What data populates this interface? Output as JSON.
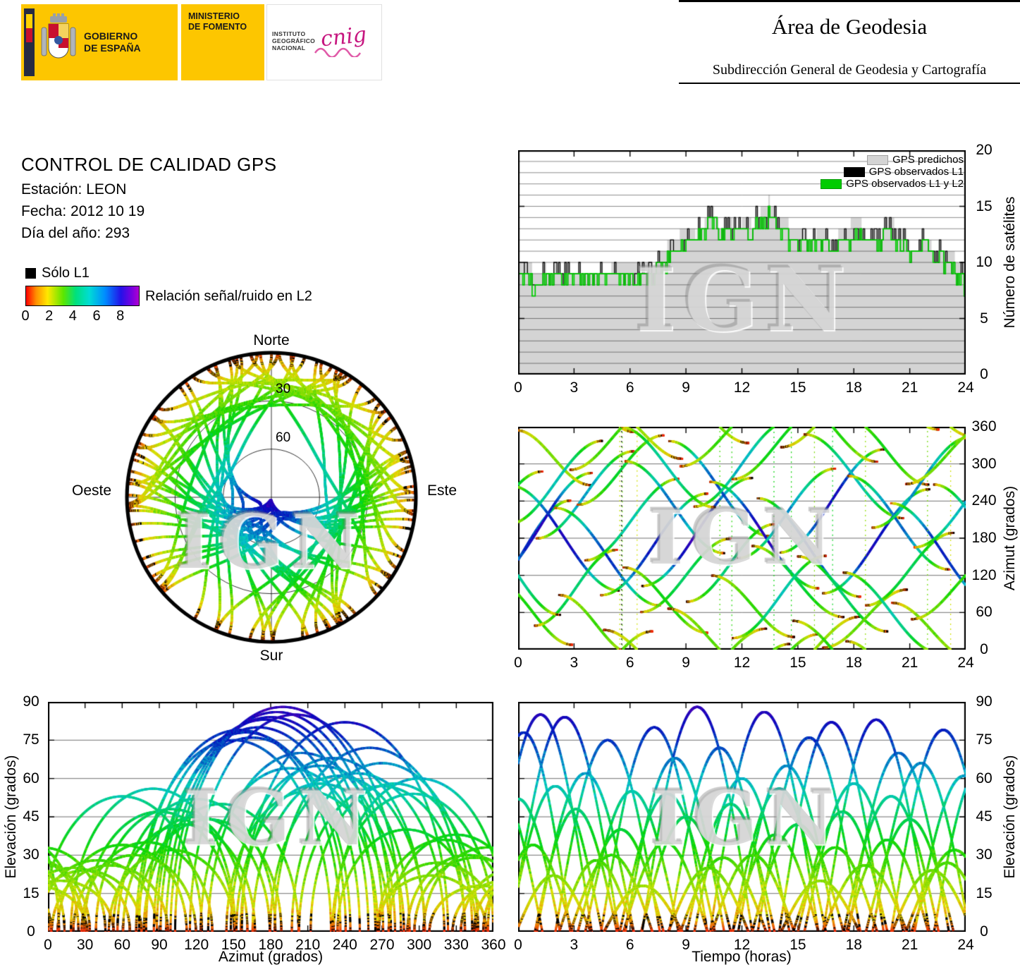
{
  "header": {
    "gobierno1": "GOBIERNO",
    "gobierno2": "DE ESPAÑA",
    "ministerio1": "MINISTERIO",
    "ministerio2": "DE FOMENTO",
    "instituto1": "INSTITUTO",
    "instituto2": "GEOGRÁFICO",
    "instituto3": "NACIONAL",
    "cnig": "cnig",
    "area_title": "Área de Geodesia",
    "area_subtitle": "Subdirección General de Geodesia y Cartografía"
  },
  "info": {
    "title": "CONTROL DE CALIDAD GPS",
    "station": "Estación: LEON",
    "date": "Fecha: 2012 10 19",
    "doy": "Día del año: 293"
  },
  "legend": {
    "solo_l1": "Sólo L1",
    "colorbar_label": "Relación señal/ruido en L2",
    "colorbar_ticks": [
      0,
      2,
      4,
      6,
      8
    ],
    "colorbar_max": 9.5
  },
  "watermark": "IGN",
  "chart_data": [
    {
      "id": "sat-count",
      "type": "area",
      "ylabel": "Número de satélites",
      "xlim": [
        0,
        24
      ],
      "ylim": [
        0,
        20
      ],
      "xticks": [
        0,
        3,
        6,
        9,
        12,
        15,
        18,
        21,
        24
      ],
      "yticks": [
        0,
        5,
        10,
        15,
        20
      ],
      "grid_y_step": 1,
      "legend": [
        {
          "label": "GPS predichos",
          "color": "#d4d4d4"
        },
        {
          "label": "GPS observados L1",
          "color": "#000000"
        },
        {
          "label": "GPS observados L1 y L2",
          "color": "#00cc00"
        }
      ],
      "keypoints": [
        [
          0,
          9.5
        ],
        [
          1,
          8.2
        ],
        [
          2,
          9.0
        ],
        [
          3,
          9.2
        ],
        [
          4,
          8.8
        ],
        [
          5,
          9.0
        ],
        [
          6,
          9.3
        ],
        [
          7,
          9.0
        ],
        [
          8,
          10.5
        ],
        [
          9,
          12.0
        ],
        [
          10,
          12.8
        ],
        [
          10.5,
          14.5
        ],
        [
          11,
          12.6
        ],
        [
          12,
          12.8
        ],
        [
          13,
          13.8
        ],
        [
          13.5,
          14.6
        ],
        [
          14,
          12.8
        ],
        [
          15,
          12.2
        ],
        [
          16,
          12.0
        ],
        [
          17,
          11.2
        ],
        [
          18,
          12.8
        ],
        [
          19,
          12.0
        ],
        [
          20,
          12.8
        ],
        [
          21,
          11.2
        ],
        [
          22,
          11.8
        ],
        [
          23,
          10.2
        ],
        [
          24,
          8.4
        ]
      ],
      "noise_seed": 293
    },
    {
      "id": "sky-plot",
      "type": "scatter",
      "labels": {
        "north": "Norte",
        "south": "Sur",
        "east": "Este",
        "west": "Oeste"
      },
      "ring_elevations": [
        30,
        60
      ],
      "ring_labels": [
        "30",
        "60"
      ],
      "source": "satellite-passes"
    },
    {
      "id": "azimuth-time",
      "type": "scatter",
      "ylabel": "Azimut (grados)",
      "xlim": [
        0,
        24
      ],
      "ylim": [
        0,
        360
      ],
      "xticks": [
        0,
        3,
        6,
        9,
        12,
        15,
        18,
        21,
        24
      ],
      "yticks": [
        0,
        60,
        120,
        180,
        240,
        300,
        360
      ],
      "source": "satellite-passes"
    },
    {
      "id": "elevation-azimuth",
      "type": "scatter",
      "xlabel": "Azimut (grados)",
      "ylabel": "Elevación (grados)",
      "xlim": [
        0,
        360
      ],
      "ylim": [
        0,
        90
      ],
      "xticks": [
        0,
        30,
        60,
        90,
        120,
        150,
        180,
        210,
        240,
        270,
        300,
        330,
        360
      ],
      "yticks": [
        0,
        15,
        30,
        45,
        60,
        75,
        90
      ],
      "source": "satellite-passes"
    },
    {
      "id": "elevation-time",
      "type": "scatter",
      "xlabel": "Tiempo (horas)",
      "ylabel": "Elevación (grados)",
      "xlim": [
        0,
        24
      ],
      "ylim": [
        0,
        90
      ],
      "xticks": [
        0,
        3,
        6,
        9,
        12,
        15,
        18,
        21,
        24
      ],
      "yticks": [
        0,
        15,
        30,
        45,
        60,
        75,
        90
      ],
      "source": "satellite-passes"
    },
    {
      "id": "satellite-passes",
      "type": "scatter",
      "format": [
        "t_peak_h",
        "duration_h",
        "elev_max_deg",
        "azimuth_peak_deg",
        "sweep_dir"
      ],
      "passes": [
        [
          0.3,
          5.0,
          78,
          160,
          1
        ],
        [
          0.8,
          4.2,
          34,
          60,
          -1
        ],
        [
          1.2,
          5.5,
          85,
          200,
          1
        ],
        [
          1.9,
          4.0,
          22,
          310,
          -1
        ],
        [
          2.5,
          5.8,
          84,
          180,
          -1
        ],
        [
          3.1,
          4.4,
          48,
          100,
          1
        ],
        [
          3.6,
          5.2,
          62,
          250,
          1
        ],
        [
          4.2,
          4.0,
          28,
          40,
          -1
        ],
        [
          4.8,
          5.6,
          75,
          150,
          -1
        ],
        [
          5.5,
          4.6,
          40,
          290,
          1
        ],
        [
          6.1,
          5.0,
          55,
          210,
          1
        ],
        [
          6.7,
          4.2,
          18,
          350,
          -1
        ],
        [
          7.3,
          5.7,
          80,
          170,
          1
        ],
        [
          7.9,
          4.5,
          35,
          80,
          -1
        ],
        [
          8.4,
          5.3,
          68,
          230,
          -1
        ],
        [
          9.0,
          4.8,
          45,
          120,
          1
        ],
        [
          9.6,
          5.9,
          88,
          190,
          1
        ],
        [
          10.2,
          4.3,
          25,
          20,
          -1
        ],
        [
          10.8,
          5.4,
          72,
          260,
          -1
        ],
        [
          11.4,
          4.7,
          50,
          140,
          1
        ],
        [
          12.0,
          5.1,
          60,
          300,
          1
        ],
        [
          12.6,
          4.4,
          30,
          70,
          -1
        ],
        [
          13.2,
          5.8,
          86,
          185,
          -1
        ],
        [
          13.8,
          4.6,
          38,
          330,
          1
        ],
        [
          14.4,
          5.2,
          65,
          220,
          1
        ],
        [
          15.0,
          4.9,
          42,
          110,
          -1
        ],
        [
          15.6,
          5.5,
          76,
          165,
          -1
        ],
        [
          16.2,
          4.2,
          20,
          10,
          1
        ],
        [
          16.8,
          5.6,
          82,
          240,
          1
        ],
        [
          17.4,
          4.8,
          47,
          90,
          -1
        ],
        [
          18.0,
          5.3,
          58,
          280,
          -1
        ],
        [
          18.6,
          4.5,
          26,
          50,
          1
        ],
        [
          19.2,
          5.7,
          83,
          175,
          1
        ],
        [
          19.8,
          4.4,
          36,
          320,
          -1
        ],
        [
          20.4,
          5.4,
          70,
          205,
          -1
        ],
        [
          21.0,
          4.7,
          44,
          130,
          1
        ],
        [
          21.6,
          5.2,
          66,
          270,
          1
        ],
        [
          22.2,
          4.3,
          24,
          30,
          -1
        ],
        [
          22.8,
          5.6,
          79,
          155,
          -1
        ],
        [
          23.4,
          4.6,
          32,
          100,
          1
        ],
        [
          23.9,
          5.3,
          61,
          235,
          1
        ],
        [
          0.0,
          4.5,
          52,
          120,
          -1
        ],
        [
          2.0,
          5.0,
          57,
          270,
          1
        ],
        [
          5.0,
          4.4,
          30,
          340,
          1
        ],
        [
          8.0,
          5.1,
          54,
          295,
          -1
        ],
        [
          11.0,
          4.6,
          29,
          345,
          1
        ],
        [
          14.0,
          5.0,
          56,
          85,
          1
        ],
        [
          17.0,
          4.5,
          33,
          355,
          -1
        ],
        [
          20.0,
          5.1,
          53,
          60,
          -1
        ],
        [
          23.0,
          4.4,
          27,
          315,
          1
        ],
        [
          -1.2,
          5.0,
          58,
          220,
          1
        ],
        [
          24.8,
          5.0,
          64,
          195,
          -1
        ]
      ]
    }
  ]
}
